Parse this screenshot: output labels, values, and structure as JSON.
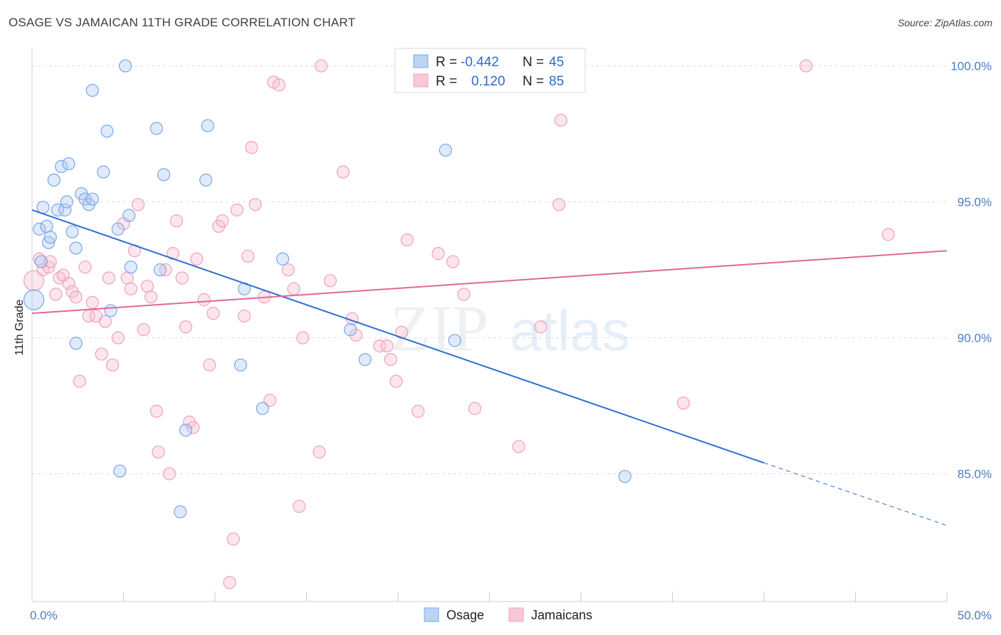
{
  "title": "OSAGE VS JAMAICAN 11TH GRADE CORRELATION CHART",
  "source": "Source: ZipAtlas.com",
  "watermark": {
    "zip": "ZIP",
    "atlas": "atlas"
  },
  "chart_data": {
    "type": "scatter",
    "ylabel": "11th Grade",
    "xlabel": "",
    "xlim": [
      0,
      50
    ],
    "ylim": [
      80.3,
      100.8
    ],
    "x_tick_labels": [
      "0.0%",
      "50.0%"
    ],
    "y_ticks": [
      85,
      90,
      95,
      100
    ],
    "y_tick_labels": [
      "85.0%",
      "90.0%",
      "95.0%",
      "100.0%"
    ],
    "grid": true,
    "legend_position": "top-center",
    "series": [
      {
        "name": "Osage",
        "color": "#7ba7e6",
        "line_color": "#2e6fd0",
        "r_label": "R =",
        "r_value": "-0.442",
        "n_label": "N =",
        "n_value": "45",
        "trend": {
          "x0": 0,
          "y0": 94.7,
          "x1": 40,
          "y1": 85.4,
          "dash_to_x": 50,
          "dash_to_y": 83.1
        },
        "points": [
          [
            0.1,
            91.4
          ],
          [
            0.4,
            94.0
          ],
          [
            0.6,
            94.8
          ],
          [
            0.5,
            92.8
          ],
          [
            0.8,
            94.1
          ],
          [
            0.9,
            93.5
          ],
          [
            1.0,
            93.7
          ],
          [
            1.2,
            95.8
          ],
          [
            1.4,
            94.7
          ],
          [
            1.6,
            96.3
          ],
          [
            1.8,
            94.7
          ],
          [
            1.9,
            95.0
          ],
          [
            2.0,
            96.4
          ],
          [
            2.2,
            93.9
          ],
          [
            2.4,
            93.3
          ],
          [
            2.7,
            95.3
          ],
          [
            2.9,
            95.1
          ],
          [
            3.1,
            94.9
          ],
          [
            3.3,
            95.1
          ],
          [
            3.3,
            99.1
          ],
          [
            3.9,
            96.1
          ],
          [
            4.1,
            97.6
          ],
          [
            4.3,
            91.0
          ],
          [
            4.7,
            94.0
          ],
          [
            4.8,
            85.1
          ],
          [
            5.1,
            100.0
          ],
          [
            5.3,
            94.5
          ],
          [
            5.4,
            92.6
          ],
          [
            6.8,
            97.7
          ],
          [
            7.0,
            92.5
          ],
          [
            7.2,
            96.0
          ],
          [
            8.1,
            83.6
          ],
          [
            8.4,
            86.6
          ],
          [
            9.5,
            95.8
          ],
          [
            9.6,
            97.8
          ],
          [
            11.4,
            89.0
          ],
          [
            11.6,
            91.8
          ],
          [
            12.6,
            87.4
          ],
          [
            13.7,
            92.9
          ],
          [
            17.4,
            90.3
          ],
          [
            18.2,
            89.2
          ],
          [
            22.6,
            96.9
          ],
          [
            23.1,
            89.9
          ],
          [
            32.4,
            84.9
          ],
          [
            2.4,
            89.8
          ]
        ]
      },
      {
        "name": "Jamaicans",
        "color": "#f0a0bd",
        "line_color": "#e0689a",
        "r_label": "R =",
        "r_value": "0.120",
        "n_label": "N =",
        "n_value": "85",
        "trend": {
          "x0": 0,
          "y0": 90.9,
          "x1": 50,
          "y1": 93.2
        },
        "points": [
          [
            0.1,
            92.1
          ],
          [
            0.4,
            92.9
          ],
          [
            0.6,
            92.5
          ],
          [
            0.9,
            92.6
          ],
          [
            1.0,
            92.8
          ],
          [
            1.3,
            91.6
          ],
          [
            1.5,
            92.2
          ],
          [
            1.7,
            92.3
          ],
          [
            2.0,
            92.0
          ],
          [
            2.2,
            91.7
          ],
          [
            2.4,
            91.5
          ],
          [
            2.6,
            88.4
          ],
          [
            2.9,
            92.6
          ],
          [
            3.1,
            90.8
          ],
          [
            3.3,
            91.3
          ],
          [
            3.5,
            90.8
          ],
          [
            3.8,
            89.4
          ],
          [
            4.0,
            90.6
          ],
          [
            4.2,
            92.2
          ],
          [
            4.4,
            89.0
          ],
          [
            4.7,
            90.0
          ],
          [
            5.0,
            94.2
          ],
          [
            5.2,
            92.2
          ],
          [
            5.4,
            91.8
          ],
          [
            5.6,
            93.2
          ],
          [
            5.8,
            94.9
          ],
          [
            6.1,
            90.3
          ],
          [
            6.3,
            91.9
          ],
          [
            6.5,
            91.5
          ],
          [
            6.8,
            87.3
          ],
          [
            6.9,
            85.8
          ],
          [
            7.3,
            92.5
          ],
          [
            7.5,
            85.0
          ],
          [
            7.7,
            93.1
          ],
          [
            7.9,
            94.3
          ],
          [
            8.2,
            92.2
          ],
          [
            8.4,
            90.4
          ],
          [
            8.6,
            86.9
          ],
          [
            8.8,
            86.7
          ],
          [
            9.0,
            92.9
          ],
          [
            9.4,
            91.4
          ],
          [
            9.7,
            89.0
          ],
          [
            9.9,
            90.9
          ],
          [
            10.2,
            94.1
          ],
          [
            10.4,
            94.3
          ],
          [
            10.8,
            81.0
          ],
          [
            11.0,
            82.6
          ],
          [
            11.2,
            94.7
          ],
          [
            11.6,
            90.8
          ],
          [
            11.8,
            93.0
          ],
          [
            12.0,
            97.0
          ],
          [
            12.2,
            94.9
          ],
          [
            12.7,
            91.5
          ],
          [
            13.0,
            87.7
          ],
          [
            13.2,
            99.4
          ],
          [
            13.5,
            99.3
          ],
          [
            14.0,
            92.5
          ],
          [
            14.3,
            91.8
          ],
          [
            14.6,
            83.8
          ],
          [
            14.8,
            90.0
          ],
          [
            15.7,
            85.8
          ],
          [
            15.8,
            100.0
          ],
          [
            16.3,
            92.1
          ],
          [
            17.0,
            96.1
          ],
          [
            17.5,
            90.7
          ],
          [
            17.7,
            90.1
          ],
          [
            19.0,
            89.7
          ],
          [
            19.4,
            89.7
          ],
          [
            19.6,
            89.2
          ],
          [
            19.9,
            88.4
          ],
          [
            20.2,
            90.2
          ],
          [
            20.5,
            93.6
          ],
          [
            21.1,
            87.3
          ],
          [
            22.2,
            93.1
          ],
          [
            23.0,
            92.8
          ],
          [
            23.6,
            91.6
          ],
          [
            24.2,
            87.4
          ],
          [
            26.6,
            86.0
          ],
          [
            27.2,
            100.0
          ],
          [
            27.8,
            90.4
          ],
          [
            28.8,
            94.9
          ],
          [
            28.9,
            98.0
          ],
          [
            35.6,
            87.6
          ],
          [
            42.3,
            100.0
          ],
          [
            46.8,
            93.8
          ]
        ]
      }
    ]
  }
}
